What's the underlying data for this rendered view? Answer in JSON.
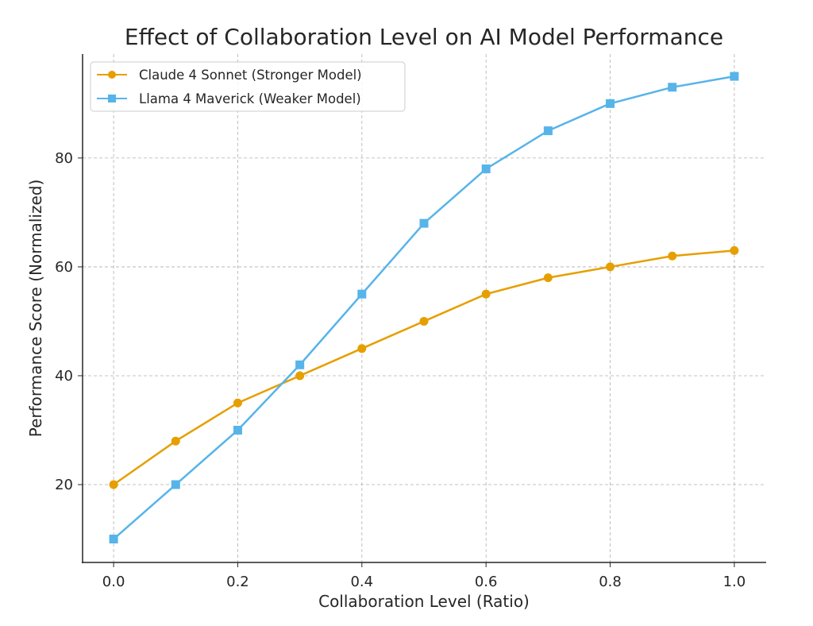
{
  "chart_data": {
    "type": "line",
    "title": "Effect of Collaboration Level on AI Model Performance",
    "xlabel": "Collaboration Level (Ratio)",
    "ylabel": "Performance Score (Normalized)",
    "x": [
      0.0,
      0.1,
      0.2,
      0.3,
      0.4,
      0.5,
      0.6,
      0.7,
      0.8,
      0.9,
      1.0
    ],
    "xlim": [
      -0.05,
      1.05
    ],
    "ylim": [
      5.7,
      99.1
    ],
    "xticks": [
      0.0,
      0.2,
      0.4,
      0.6,
      0.8,
      1.0
    ],
    "xtick_labels": [
      "0.0",
      "0.2",
      "0.4",
      "0.6",
      "0.8",
      "1.0"
    ],
    "yticks": [
      20,
      40,
      60,
      80
    ],
    "ytick_labels": [
      "20",
      "40",
      "60",
      "80"
    ],
    "grid": true,
    "legend_position": "top-left",
    "series": [
      {
        "name": "Claude 4 Sonnet (Stronger Model)",
        "marker": "circle",
        "color": "#E69F00",
        "values": [
          20,
          28,
          35,
          40,
          45,
          50,
          55,
          58,
          60,
          62,
          63
        ]
      },
      {
        "name": "Llama 4 Maverick (Weaker Model)",
        "marker": "square",
        "color": "#56B4E9",
        "values": [
          10,
          20,
          30,
          42,
          55,
          68,
          78,
          85,
          90,
          93,
          95
        ]
      }
    ]
  }
}
